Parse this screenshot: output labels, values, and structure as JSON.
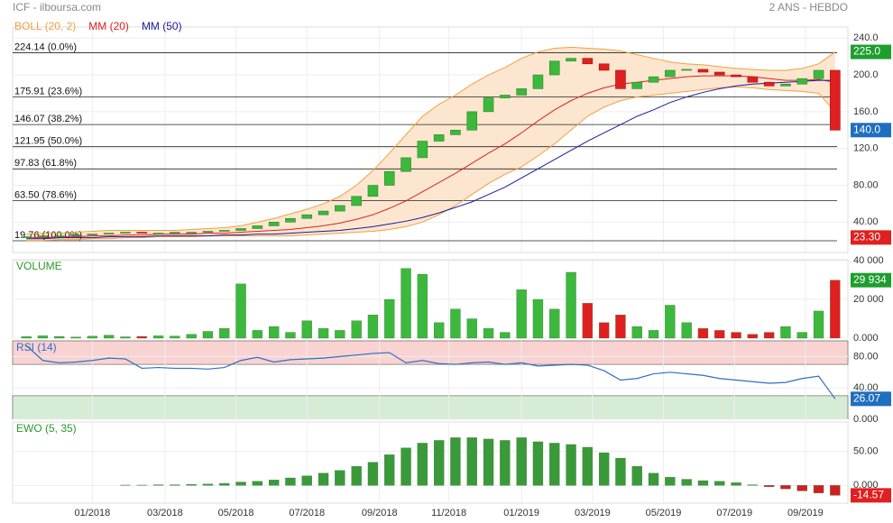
{
  "header": {
    "source": "ICF - ilboursa.com",
    "period": "2 ANS - HEBDO"
  },
  "chart_data": [
    {
      "type": "candlestick",
      "legend": [
        {
          "name": "BOLL (20, 2)",
          "color": "#f0a040"
        },
        {
          "name": "MM (20)",
          "color": "#e02020"
        },
        {
          "name": "MM (50)",
          "color": "#1a1aa0"
        }
      ],
      "xlim": [
        -0.5,
        49.5
      ],
      "ylim": [
        7,
        252
      ],
      "yticks": [
        {
          "value": 40,
          "label": "40.00"
        },
        {
          "value": 80,
          "label": "80.00"
        },
        {
          "value": 120,
          "label": "120.0"
        },
        {
          "value": 160,
          "label": "160.0"
        },
        {
          "value": 200,
          "label": "200.0"
        },
        {
          "value": 240,
          "label": "240.0"
        }
      ],
      "fib": [
        {
          "value": 224.14,
          "label": "224.14  (0.0%)"
        },
        {
          "value": 175.91,
          "label": "175.91  (23.6%)"
        },
        {
          "value": 146.07,
          "label": "146.07  (38.2%)"
        },
        {
          "value": 121.95,
          "label": "121.95  (50.0%)"
        },
        {
          "value": 97.83,
          "label": "97.83  (61.8%)"
        },
        {
          "value": 63.5,
          "label": "63.50  (78.6%)"
        },
        {
          "value": 19.76,
          "label": "19.76  (100.0%)"
        }
      ],
      "badges": [
        {
          "value": 225,
          "label": "225.0",
          "color": "#1e9e2e"
        },
        {
          "value": 140,
          "label": "140.0",
          "color": "#1f6fc0"
        },
        {
          "value": 23.3,
          "label": "23.30",
          "color": "#e02020"
        }
      ],
      "open": [
        23,
        24,
        25,
        25,
        26,
        27,
        28,
        29,
        28,
        28,
        28,
        29,
        30,
        31,
        33,
        36,
        40,
        44,
        48,
        52,
        58,
        68,
        80,
        95,
        110,
        128,
        135,
        140,
        160,
        175,
        178,
        185,
        200,
        215,
        218,
        212,
        205,
        185,
        192,
        198,
        205,
        206,
        203,
        200,
        198,
        192,
        188,
        190,
        196,
        205
      ],
      "close": [
        24,
        25,
        25,
        26,
        27,
        28,
        29,
        28,
        28,
        29,
        29,
        30,
        31,
        33,
        36,
        40,
        44,
        48,
        52,
        58,
        68,
        80,
        95,
        110,
        128,
        135,
        140,
        160,
        175,
        178,
        185,
        200,
        215,
        218,
        212,
        205,
        185,
        192,
        198,
        205,
        206,
        203,
        200,
        198,
        192,
        188,
        190,
        196,
        205,
        140
      ],
      "boll_upper": [
        27,
        28,
        28,
        29,
        30,
        31,
        31,
        31,
        31,
        31,
        32,
        33,
        34,
        36,
        40,
        44,
        49,
        54,
        60,
        68,
        80,
        96,
        115,
        135,
        155,
        168,
        178,
        190,
        200,
        208,
        218,
        225,
        229,
        230,
        229,
        228,
        226,
        222,
        218,
        214,
        212,
        211,
        209,
        207,
        206,
        205,
        205,
        207,
        212,
        225
      ],
      "boll_lower": [
        20,
        20,
        21,
        21,
        22,
        22,
        23,
        23,
        24,
        24,
        24,
        25,
        25,
        25,
        25,
        25,
        25,
        26,
        27,
        28,
        29,
        30,
        32,
        35,
        40,
        48,
        58,
        70,
        82,
        92,
        100,
        112,
        125,
        140,
        155,
        165,
        172,
        176,
        178,
        180,
        182,
        184,
        186,
        187,
        186,
        184,
        183,
        182,
        180,
        160
      ],
      "mm20": [
        23,
        23,
        24,
        24,
        25,
        25,
        26,
        26,
        27,
        27,
        27,
        28,
        28,
        29,
        30,
        31,
        32,
        34,
        36,
        39,
        43,
        48,
        55,
        63,
        73,
        83,
        93,
        104,
        115,
        125,
        137,
        150,
        162,
        172,
        180,
        186,
        190,
        192,
        194,
        196,
        198,
        199,
        199,
        199,
        198,
        196,
        194,
        194,
        195,
        192
      ],
      "mm50": [
        22,
        22,
        23,
        23,
        23,
        24,
        24,
        24,
        25,
        25,
        25,
        25,
        26,
        26,
        27,
        27,
        28,
        29,
        30,
        31,
        33,
        35,
        38,
        41,
        45,
        50,
        56,
        62,
        70,
        78,
        88,
        98,
        108,
        118,
        128,
        137,
        146,
        155,
        162,
        170,
        176,
        181,
        185,
        188,
        190,
        191,
        192,
        193,
        194,
        194
      ]
    },
    {
      "type": "bar",
      "title": "VOLUME",
      "xlim": [
        -0.5,
        49.5
      ],
      "ylim": [
        0,
        40500
      ],
      "yticks": [
        {
          "value": 0,
          "label": "0.000"
        },
        {
          "value": 20000,
          "label": "20 000"
        },
        {
          "value": 40000,
          "label": "40 000"
        }
      ],
      "badge": {
        "value": 29934,
        "label": "29 934",
        "color": "#1e9e2e"
      },
      "values": [
        800,
        1200,
        900,
        600,
        1000,
        1500,
        700,
        900,
        1200,
        1100,
        2000,
        3500,
        5000,
        28000,
        4000,
        6000,
        3000,
        9000,
        5000,
        4000,
        9000,
        12000,
        20000,
        36000,
        33000,
        8000,
        15000,
        10000,
        5000,
        3000,
        25000,
        20000,
        15000,
        34000,
        18000,
        8000,
        12000,
        6000,
        4000,
        17000,
        8000,
        5000,
        4000,
        3000,
        2000,
        3000,
        6000,
        3000,
        14000,
        29934
      ]
    },
    {
      "type": "line",
      "title": "RSI (14)",
      "color": "#2f6fc0",
      "xlim": [
        -0.5,
        49.5
      ],
      "ylim": [
        0,
        100
      ],
      "zones": [
        {
          "from": 70,
          "to": 100,
          "color": "#f9d2d2"
        },
        {
          "from": 0,
          "to": 30,
          "color": "#d6ecd6"
        }
      ],
      "yticks": [
        {
          "value": 0,
          "label": "0.000"
        },
        {
          "value": 40,
          "label": "40.00"
        },
        {
          "value": 80,
          "label": "80.00"
        }
      ],
      "badge": {
        "value": 26.07,
        "label": "26.07",
        "color": "#1f6fc0"
      },
      "values": [
        94,
        75,
        72,
        73,
        75,
        78,
        77,
        65,
        66,
        65,
        65,
        64,
        66,
        75,
        79,
        73,
        76,
        77,
        78,
        80,
        82,
        84,
        85,
        72,
        75,
        71,
        70,
        72,
        73,
        70,
        72,
        68,
        69,
        70,
        69,
        62,
        50,
        52,
        58,
        60,
        58,
        56,
        52,
        50,
        48,
        46,
        47,
        52,
        55,
        26.07
      ]
    },
    {
      "type": "bar",
      "title": "EWO (5, 35)",
      "xlim": [
        -0.5,
        49.5
      ],
      "ylim": [
        -26,
        93
      ],
      "yticks": [
        {
          "value": 0,
          "label": "0.000"
        },
        {
          "value": 50,
          "label": "50.00"
        }
      ],
      "badge": {
        "value": -14.57,
        "label": "-14.57",
        "color": "#e02020"
      },
      "xticks": [
        {
          "value": 4.0,
          "label": "01/2018"
        },
        {
          "value": 8.4,
          "label": "03/2018"
        },
        {
          "value": 12.7,
          "label": "05/2018"
        },
        {
          "value": 17.0,
          "label": "07/2018"
        },
        {
          "value": 21.4,
          "label": "09/2018"
        },
        {
          "value": 25.6,
          "label": "11/2018"
        },
        {
          "value": 30.0,
          "label": "01/2019"
        },
        {
          "value": 34.3,
          "label": "03/2019"
        },
        {
          "value": 38.6,
          "label": "05/2019"
        },
        {
          "value": 42.9,
          "label": "07/2019"
        },
        {
          "value": 47.2,
          "label": "09/2019"
        }
      ],
      "values": [
        0,
        0,
        0,
        0,
        0,
        0,
        0.5,
        0.5,
        1,
        1,
        1.5,
        2,
        3,
        5,
        6,
        8,
        11,
        14,
        18,
        22,
        28,
        34,
        45,
        55,
        62,
        66,
        70,
        70,
        68,
        66,
        70,
        64,
        62,
        60,
        56,
        48,
        40,
        28,
        18,
        12,
        9,
        7,
        6,
        4,
        1,
        -2,
        -5,
        -8,
        -11,
        -14.57
      ]
    }
  ]
}
